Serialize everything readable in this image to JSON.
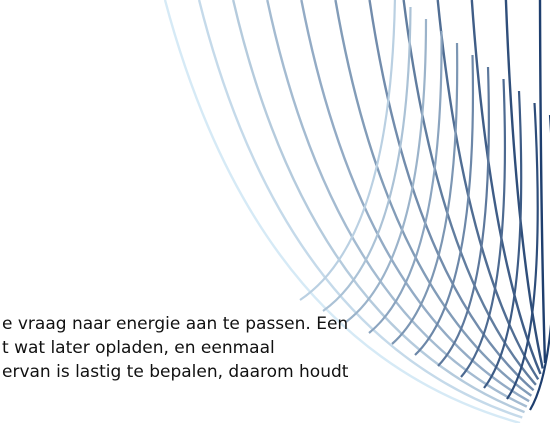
{
  "body": {
    "lines": [
      "e vraag naar energie aan te passen. Een",
      "t wat later opladen, en eenmaal",
      "ervan is lastig te bepalen, daarom houdt"
    ]
  }
}
